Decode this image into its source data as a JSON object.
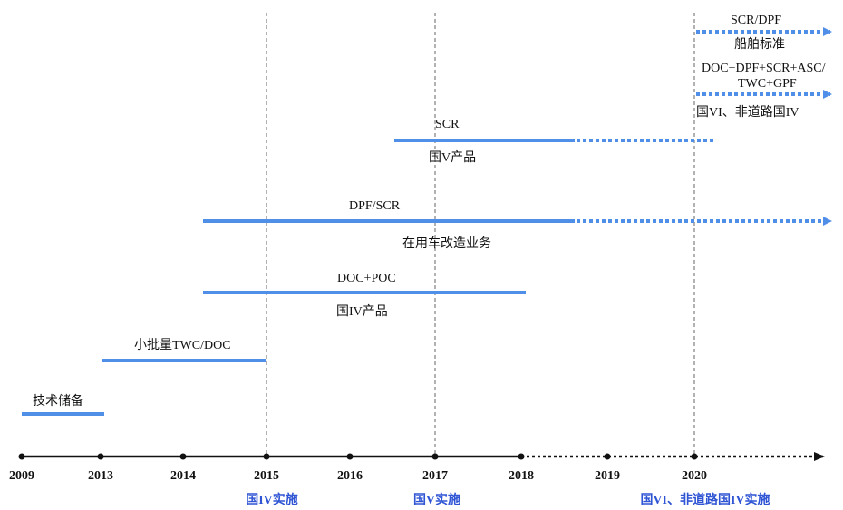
{
  "colors": {
    "bar": "#4f8fe8",
    "axis": "#111111",
    "policy_text": "#2f55d4",
    "milestone_line": "#666666"
  },
  "timeline": {
    "years": [
      "2009",
      "2013",
      "2014",
      "2015",
      "2016",
      "2017",
      "2018",
      "2019",
      "2020"
    ],
    "solid_until": "2018"
  },
  "policies": [
    {
      "year": "2015",
      "label": "国IV实施"
    },
    {
      "year": "2017",
      "label": "国V实施"
    },
    {
      "year": "2020",
      "label": "国VI、非道路国IV实施"
    }
  ],
  "bars": [
    {
      "label": "技术储备",
      "start": "2009",
      "end": "2013",
      "continues": false
    },
    {
      "label": "小批量TWC/DOC",
      "start": "2013",
      "end": "2015",
      "continues": false
    },
    {
      "label": "DOC+POC",
      "sublabel": "国IV产品",
      "start": "2014.3",
      "end": "2018.05",
      "continues": false
    },
    {
      "label": "DPF/SCR",
      "sublabel": "在用车改造业务",
      "start": "2014.3",
      "end": "2018.6",
      "continues": true,
      "continues_to": "beyond 2020"
    },
    {
      "label": "SCR",
      "sublabel": "国V产品",
      "start": "2016.5",
      "end": "2018.6",
      "continues": true,
      "continues_to": "2020.25"
    },
    {
      "label": "DOC+DPF+SCR+ASC/",
      "label2": "TWC+GPF",
      "sublabel": "国VI、非道路国IV",
      "start": "2020",
      "end": "beyond 2020",
      "continues": true,
      "dotted_only": true
    },
    {
      "label": "SCR/DPF",
      "sublabel": "船舶标准",
      "start": "2020",
      "end": "beyond 2020",
      "continues": true,
      "dotted_only": true
    }
  ]
}
